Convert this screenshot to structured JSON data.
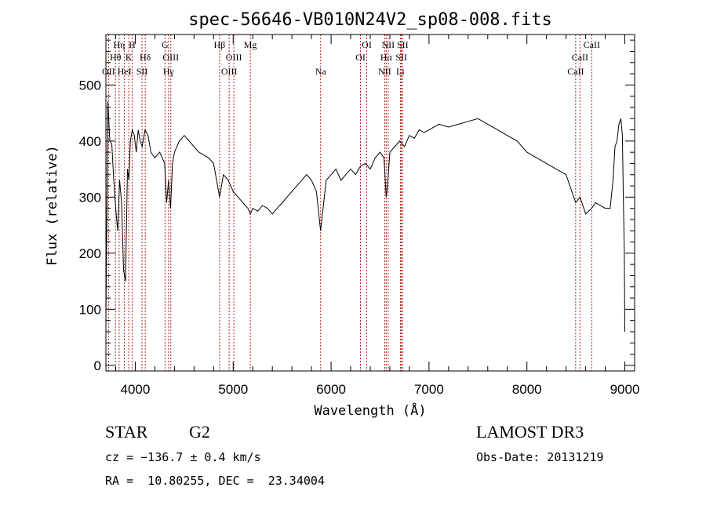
{
  "chart_data": {
    "type": "line",
    "title": "spec-56646-VB010N24V2_sp08-008.fits",
    "xlabel": "Wavelength (Å)",
    "ylabel": "Flux (relative)",
    "xlim": [
      3700,
      9100
    ],
    "ylim": [
      -10,
      590
    ],
    "xticks": [
      4000,
      5000,
      6000,
      7000,
      8000,
      9000
    ],
    "yticks": [
      0,
      100,
      200,
      300,
      400,
      500
    ],
    "series": [
      {
        "name": "flux",
        "x": [
          3700,
          3720,
          3740,
          3760,
          3780,
          3800,
          3820,
          3840,
          3860,
          3880,
          3900,
          3920,
          3935,
          3950,
          3970,
          3990,
          4010,
          4030,
          4050,
          4070,
          4100,
          4130,
          4160,
          4200,
          4250,
          4300,
          4320,
          4340,
          4360,
          4380,
          4400,
          4450,
          4500,
          4550,
          4600,
          4650,
          4700,
          4750,
          4800,
          4861,
          4900,
          4950,
          5000,
          5050,
          5100,
          5150,
          5175,
          5200,
          5250,
          5300,
          5350,
          5400,
          5450,
          5500,
          5550,
          5600,
          5650,
          5700,
          5750,
          5800,
          5850,
          5893,
          5950,
          6000,
          6050,
          6100,
          6150,
          6200,
          6250,
          6300,
          6350,
          6400,
          6450,
          6500,
          6540,
          6563,
          6580,
          6600,
          6650,
          6700,
          6750,
          6800,
          6850,
          6900,
          6950,
          7000,
          7100,
          7200,
          7300,
          7400,
          7500,
          7600,
          7700,
          7800,
          7900,
          8000,
          8100,
          8200,
          8300,
          8400,
          8498,
          8542,
          8600,
          8662,
          8700,
          8750,
          8800,
          8850,
          8880,
          8900,
          8920,
          8940,
          8960,
          8975,
          8985,
          8995,
          9000
        ],
        "y": [
          80,
          470,
          400,
          395,
          330,
          280,
          240,
          330,
          290,
          170,
          150,
          350,
          330,
          400,
          420,
          410,
          380,
          420,
          400,
          390,
          420,
          410,
          380,
          370,
          380,
          360,
          290,
          330,
          280,
          360,
          380,
          400,
          410,
          400,
          390,
          380,
          375,
          370,
          360,
          300,
          340,
          330,
          310,
          300,
          290,
          280,
          270,
          280,
          275,
          285,
          280,
          270,
          280,
          290,
          300,
          310,
          320,
          330,
          340,
          330,
          310,
          240,
          330,
          340,
          350,
          330,
          340,
          350,
          340,
          355,
          360,
          350,
          370,
          380,
          370,
          300,
          330,
          380,
          390,
          400,
          390,
          410,
          405,
          420,
          415,
          420,
          430,
          425,
          430,
          435,
          440,
          430,
          420,
          410,
          400,
          380,
          370,
          360,
          350,
          340,
          290,
          300,
          270,
          280,
          290,
          285,
          280,
          280,
          330,
          390,
          400,
          430,
          440,
          410,
          300,
          200,
          60
        ]
      }
    ],
    "line_markers": [
      {
        "name": "OII",
        "wl": 3727,
        "row": 3
      },
      {
        "name": "Hθ",
        "wl": 3798,
        "row": 2
      },
      {
        "name": "Hη",
        "wl": 3835,
        "row": 1
      },
      {
        "name": "HeI",
        "wl": 3889,
        "row": 3
      },
      {
        "name": "K",
        "wl": 3934,
        "row": 2
      },
      {
        "name": "H",
        "wl": 3968,
        "row": 1
      },
      {
        "name": "SII",
        "wl": 4069,
        "row": 3
      },
      {
        "name": "Hδ",
        "wl": 4102,
        "row": 2
      },
      {
        "name": "G",
        "wl": 4304,
        "row": 1
      },
      {
        "name": "Hγ",
        "wl": 4340,
        "row": 3
      },
      {
        "name": "OIII",
        "wl": 4363,
        "row": 2
      },
      {
        "name": "Hβ",
        "wl": 4861,
        "row": 1
      },
      {
        "name": "OIII",
        "wl": 4959,
        "row": 3
      },
      {
        "name": "OIII",
        "wl": 5007,
        "row": 2
      },
      {
        "name": "Mg",
        "wl": 5175,
        "row": 1
      },
      {
        "name": "Na",
        "wl": 5893,
        "row": 3
      },
      {
        "name": "OI",
        "wl": 6300,
        "row": 2
      },
      {
        "name": "OI",
        "wl": 6364,
        "row": 1
      },
      {
        "name": "NII",
        "wl": 6548,
        "row": 3
      },
      {
        "name": "Hα",
        "wl": 6563,
        "row": 2
      },
      {
        "name": "NII",
        "wl": 6583,
        "row": 1
      },
      {
        "name": "Li",
        "wl": 6708,
        "row": 3
      },
      {
        "name": "SII",
        "wl": 6717,
        "row": 2
      },
      {
        "name": "SII",
        "wl": 6731,
        "row": 1
      },
      {
        "name": "CaII",
        "wl": 8498,
        "row": 3
      },
      {
        "name": "CaII",
        "wl": 8542,
        "row": 2
      },
      {
        "name": "CaII",
        "wl": 8662,
        "row": 1
      }
    ]
  },
  "info": {
    "object_class": "STAR",
    "subclass": "G2",
    "survey": "LAMOST DR3",
    "redshift_line": "cz = −136.7 ± 0.4 km/s",
    "obs_date_line": "Obs-Date: 20131219",
    "coords_line": "RA =  10.80255, DEC =  23.34004"
  },
  "colors": {
    "marker_line": "#b22222",
    "spectrum": "#000000",
    "axes": "#000000"
  }
}
